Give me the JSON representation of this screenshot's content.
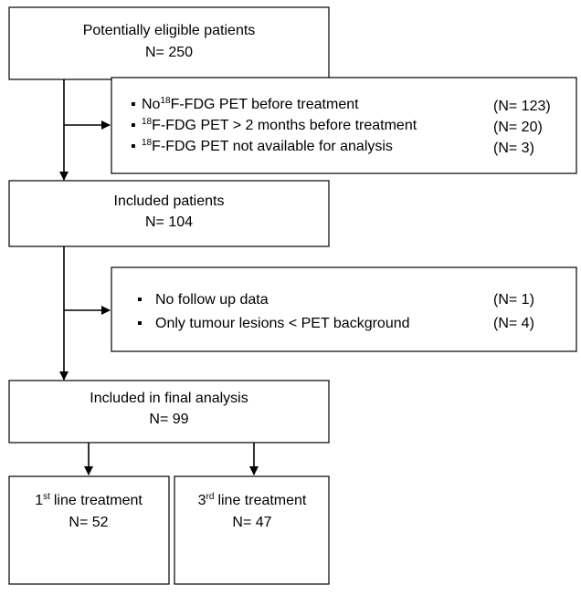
{
  "nodes": [
    {
      "label": "Potentially eligible patients",
      "count": "N= 250"
    },
    {
      "label": "Included patients",
      "count": "N= 104"
    },
    {
      "label": "Included in final analysis",
      "count": "N= 99"
    }
  ],
  "exclusions": [
    {
      "items": [
        {
          "prefix": "No",
          "sup": "18",
          "text": "F-FDG PET before treatment",
          "count": "(N= 123)"
        },
        {
          "sup": "18",
          "text": "F-FDG PET > 2 months before treatment",
          "count": "(N= 20)"
        },
        {
          "sup": "18",
          "text": "F-FDG PET not available for analysis",
          "count": "(N= 3)"
        }
      ]
    },
    {
      "items": [
        {
          "text": "No follow up data",
          "count": "(N= 1)"
        },
        {
          "text": "Only tumour lesions < PET background",
          "count": "(N= 4)"
        }
      ]
    }
  ],
  "branches": [
    {
      "number": "1",
      "sup": "st",
      "text": "line treatment",
      "count": "N= 52"
    },
    {
      "number": "3",
      "sup": "rd",
      "text": "line treatment",
      "count": "N= 47"
    }
  ]
}
